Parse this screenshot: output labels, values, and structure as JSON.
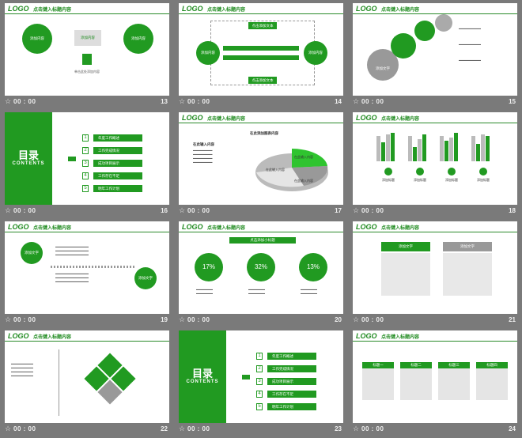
{
  "slides": [
    {
      "num": "13",
      "time": "00 : 00",
      "logo": "LOGO",
      "title": "点击键入标题内容",
      "content": {
        "left": "添加内容",
        "mid": "添加内容",
        "right": "添加内容",
        "below": "单击此处添加内容"
      }
    },
    {
      "num": "14",
      "time": "00 : 00",
      "logo": "LOGO",
      "title": "点击键入标题内容",
      "content": {
        "top": "点击添加文本",
        "left": "添加内容",
        "right": "添加内容",
        "bottom": "点击添加文本"
      }
    },
    {
      "num": "15",
      "time": "00 : 00",
      "logo": "LOGO",
      "title": "点击键入标题内容",
      "content": {
        "big": "添加文字"
      }
    },
    {
      "num": "16",
      "time": "00 : 00",
      "toc": {
        "title": "目录",
        "sub": "CONTENTS",
        "items": [
          "年度工作概述",
          "工作完成情况",
          "成功项目展示",
          "工作存在不足",
          "明年工作计划"
        ]
      }
    },
    {
      "num": "17",
      "time": "00 : 00",
      "logo": "LOGO",
      "title": "点击键入标题内容",
      "content": {
        "left": "在此输入内容",
        "right": "在此添加图表内容",
        "s1": "在此输入内容",
        "s2": "在此输入内容",
        "s3": "在此输入内容"
      }
    },
    {
      "num": "18",
      "time": "00 : 00",
      "logo": "LOGO",
      "title": "点击键入标题内容",
      "content": {
        "labels": [
          "添加标题",
          "添加标题",
          "添加标题",
          "添加标题"
        ]
      }
    },
    {
      "num": "19",
      "time": "00 : 00",
      "logo": "LOGO",
      "title": "点击键入标题内容",
      "content": {
        "a": "添加文字",
        "b": "添加文字"
      }
    },
    {
      "num": "20",
      "time": "00 : 00",
      "logo": "LOGO",
      "title": "点击键入标题内容",
      "content": {
        "banner": "点击添加小标题",
        "pcts": [
          "17%",
          "32%",
          "13%"
        ]
      }
    },
    {
      "num": "21",
      "time": "00 : 00",
      "logo": "LOGO",
      "title": "点击键入标题内容",
      "content": {
        "tab1": "添加文字",
        "tab2": "添加文字"
      }
    },
    {
      "num": "22",
      "time": "00 : 00",
      "logo": "LOGO",
      "title": "点击键入标题内容",
      "content": {}
    },
    {
      "num": "23",
      "time": "00 : 00",
      "toc": {
        "title": "目录",
        "sub": "CONTENTS",
        "items": [
          "年度工作概述",
          "工作完成情况",
          "成功项目展示",
          "工作存在不足",
          "明年工作计划"
        ]
      }
    },
    {
      "num": "24",
      "time": "00 : 00",
      "logo": "LOGO",
      "title": "点击键入标题内容",
      "content": {
        "cards": [
          "标题一",
          "标题二",
          "标题三",
          "标题四"
        ]
      }
    }
  ]
}
